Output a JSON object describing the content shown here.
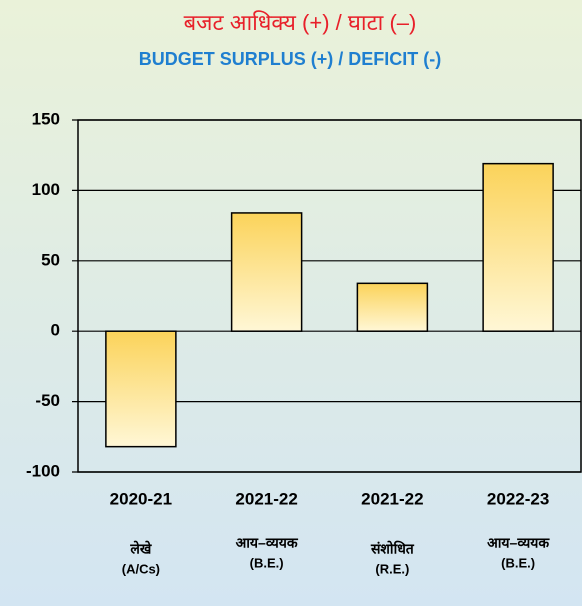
{
  "chart_data": {
    "type": "bar",
    "title": "बजट आधिक्य (+) / घाटा (–)",
    "subtitle": "BUDGET SURPLUS (+) / DEFICIT (-)",
    "categories": [
      "2020-21",
      "2021-22",
      "2021-22",
      "2022-23"
    ],
    "category_notes": [
      [
        "लेखे",
        "(A/Cs)"
      ],
      [
        "आय–व्ययक",
        "(B.E.)"
      ],
      [
        "संशोधित",
        "(R.E.)"
      ],
      [
        "आय–व्ययक",
        "(B.E.)"
      ]
    ],
    "values": [
      -82,
      84,
      34,
      119
    ],
    "color": "#fbd35a",
    "ylim": [
      -100,
      150
    ],
    "yticks": [
      -100,
      -50,
      0,
      50,
      100,
      150
    ],
    "grid": true
  }
}
